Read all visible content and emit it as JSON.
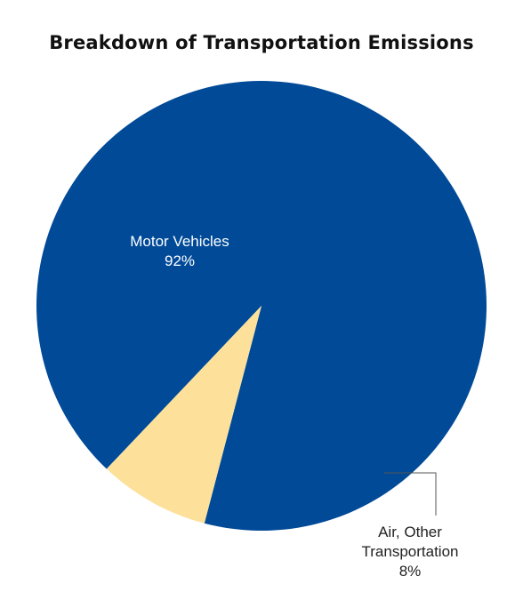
{
  "chart_data": {
    "type": "pie",
    "title": "Breakdown of Transportation Emissions",
    "slices": [
      {
        "label_lines": [
          "Motor Vehicles",
          "92%"
        ],
        "value": 92,
        "color": "#004a98",
        "label_color": "#ffffff"
      },
      {
        "label_lines": [
          "Air, Other",
          "Transportation",
          "8%"
        ],
        "value": 8,
        "color": "#fde19a",
        "label_color": "#222222"
      }
    ],
    "leader_line_color": "#555555"
  }
}
